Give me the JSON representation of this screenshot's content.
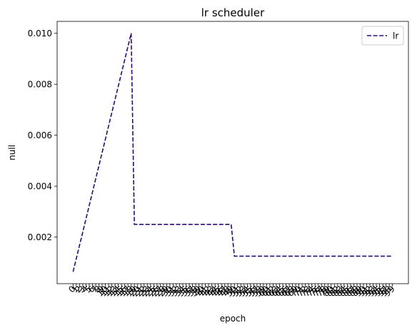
{
  "chart_data": {
    "type": "line",
    "title": "lr scheduler",
    "xlabel": "epoch",
    "ylabel": "null",
    "x": [
      0,
      1,
      2,
      3,
      4,
      5,
      6,
      7,
      8,
      9,
      10,
      11,
      12,
      13,
      14,
      15,
      16,
      17,
      18,
      19,
      20,
      21,
      22,
      23,
      24,
      25,
      26,
      27,
      28,
      29,
      30,
      31,
      32,
      33,
      34,
      35,
      36,
      37,
      38,
      39,
      40,
      41,
      42,
      43,
      44,
      45,
      46,
      47,
      48,
      49,
      50,
      51,
      52,
      53,
      54,
      55,
      56,
      57,
      58,
      59,
      60,
      61,
      62,
      63,
      64,
      65,
      66,
      67,
      68,
      69,
      70,
      71,
      72,
      73,
      74,
      75,
      76,
      77,
      78,
      79,
      80,
      81,
      82,
      83,
      84,
      85,
      86,
      87,
      88,
      89,
      90,
      91,
      92,
      93,
      94,
      95,
      96,
      97,
      98,
      99
    ],
    "series": [
      {
        "name": "lr",
        "color": "#2c0a7a",
        "linestyle": "dashed",
        "values": [
          0.00064,
          0.00116,
          0.00168,
          0.0022,
          0.00272,
          0.00324,
          0.00376,
          0.00428,
          0.0048,
          0.00532,
          0.00584,
          0.00636,
          0.00688,
          0.0074,
          0.00792,
          0.00844,
          0.00896,
          0.00948,
          0.01,
          0.0025,
          0.0025,
          0.0025,
          0.0025,
          0.0025,
          0.0025,
          0.0025,
          0.0025,
          0.0025,
          0.0025,
          0.0025,
          0.0025,
          0.0025,
          0.0025,
          0.0025,
          0.0025,
          0.0025,
          0.0025,
          0.0025,
          0.0025,
          0.0025,
          0.0025,
          0.0025,
          0.0025,
          0.0025,
          0.0025,
          0.0025,
          0.0025,
          0.0025,
          0.0025,
          0.0025,
          0.00125,
          0.00125,
          0.00125,
          0.00125,
          0.00125,
          0.00125,
          0.00125,
          0.00125,
          0.00125,
          0.00125,
          0.00125,
          0.00125,
          0.00125,
          0.00125,
          0.00125,
          0.00125,
          0.00125,
          0.00125,
          0.00125,
          0.00125,
          0.00125,
          0.00125,
          0.00125,
          0.00125,
          0.00125,
          0.00125,
          0.00125,
          0.00125,
          0.00125,
          0.00125,
          0.00125,
          0.00125,
          0.00125,
          0.00125,
          0.00125,
          0.00125,
          0.00125,
          0.00125,
          0.00125,
          0.00125,
          0.00125,
          0.00125,
          0.00125,
          0.00125,
          0.00125,
          0.00125,
          0.00125,
          0.00125,
          0.00125,
          0.00125
        ]
      }
    ],
    "yticks": [
      0.002,
      0.004,
      0.006,
      0.008,
      0.01
    ],
    "ytick_labels": [
      "0.002",
      "0.004",
      "0.006",
      "0.008",
      "0.010"
    ],
    "xlim": [
      -4.95,
      103.95
    ],
    "ylim": [
      0.000172,
      0.010468
    ],
    "grid": false,
    "legend": "top-right"
  }
}
